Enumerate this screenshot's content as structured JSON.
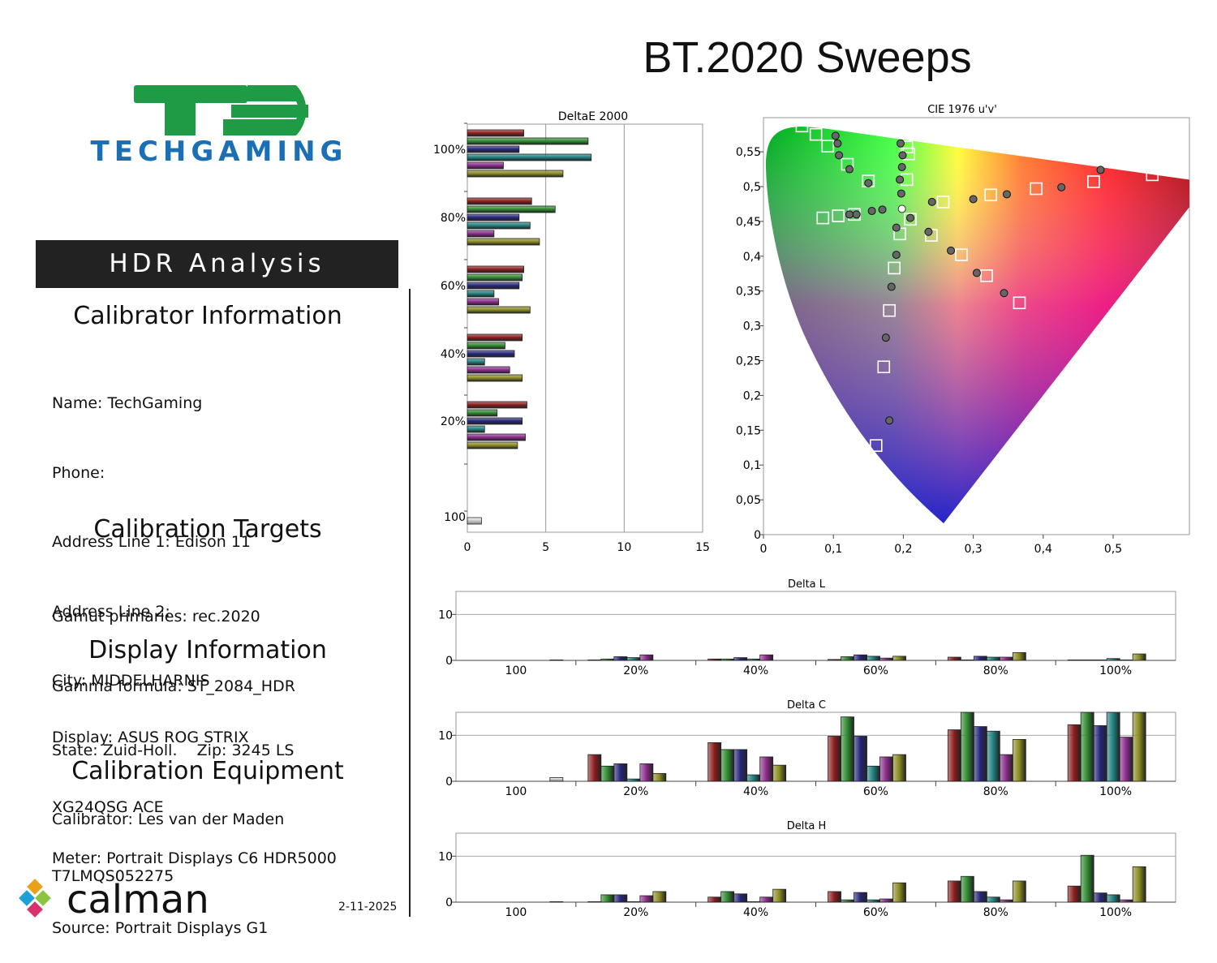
{
  "page_title": "BT.2020 Sweeps",
  "brand": {
    "logo_text": "TECHGAMING",
    "logo_mark": "TG"
  },
  "banner": "HDR Analysis",
  "calibrator": {
    "heading": "Calibrator Information",
    "lines": [
      "Name: TechGaming",
      "Phone:",
      "Address Line 1: Edison 11",
      "Address Line 2:",
      "City: MIDDELHARNIS",
      "State: Zuid-Holl.    Zip: 3245 LS",
      "Calibrator: Les van der Maden"
    ]
  },
  "targets": {
    "heading": "Calibration Targets",
    "lines": [
      "Gamut primaries: rec.2020",
      "Gamma formula: ST_2084_HDR"
    ]
  },
  "display": {
    "heading": "Display Information",
    "lines": [
      "Display: ASUS ROG STRIX",
      "XG24QSG ACE",
      "T7LMQS052275"
    ]
  },
  "equipment": {
    "heading": "Calibration Equipment",
    "lines": [
      "Meter: Portrait Displays C6 HDR5000",
      "Source: Portrait Displays G1"
    ]
  },
  "footer": {
    "software_logo": "calman",
    "date": "2-11-2025"
  },
  "series_colors": [
    "#8a1c1c",
    "#2f8a2f",
    "#25257a",
    "#1f7f7f",
    "#8a2a8a",
    "#8a8a20"
  ],
  "chart_data": [
    {
      "type": "bar",
      "orientation": "horizontal",
      "title": "DeltaE 2000",
      "xlim": [
        0,
        15
      ],
      "xticks": [
        0,
        5,
        10,
        15
      ],
      "groups": [
        {
          "label": "100%",
          "values": [
            3.6,
            7.7,
            3.3,
            7.9,
            2.3,
            6.1
          ]
        },
        {
          "label": "80%",
          "values": [
            4.1,
            5.6,
            3.3,
            4.0,
            1.7,
            4.6
          ]
        },
        {
          "label": "60%",
          "values": [
            3.6,
            3.5,
            3.3,
            1.7,
            2.0,
            4.0
          ]
        },
        {
          "label": "40%",
          "values": [
            3.5,
            2.4,
            3.0,
            1.1,
            2.7,
            3.5
          ]
        },
        {
          "label": "20%",
          "values": [
            3.8,
            1.9,
            3.5,
            1.1,
            3.7,
            3.2
          ]
        },
        {
          "label": "100",
          "values": [
            0.9
          ]
        }
      ]
    },
    {
      "type": "scatter",
      "title": "CIE 1976 u'v'",
      "xlim": [
        0,
        0.6
      ],
      "ylim": [
        0,
        0.6
      ],
      "xticks": [
        "0",
        "0,1",
        "0,2",
        "0,3",
        "0,4",
        "0,5"
      ],
      "yticks": [
        "0",
        "0,05",
        "0,1",
        "0,15",
        "0,2",
        "0,25",
        "0,3",
        "0,35",
        "0,4",
        "0,45",
        "0,5",
        "0,55"
      ],
      "targets": [
        [
          0.055,
          0.587
        ],
        [
          0.075,
          0.575
        ],
        [
          0.092,
          0.558
        ],
        [
          0.12,
          0.532
        ],
        [
          0.15,
          0.508
        ],
        [
          0.205,
          0.557
        ],
        [
          0.208,
          0.547
        ],
        [
          0.205,
          0.51
        ],
        [
          0.556,
          0.517
        ],
        [
          0.472,
          0.507
        ],
        [
          0.39,
          0.497
        ],
        [
          0.325,
          0.488
        ],
        [
          0.257,
          0.478
        ],
        [
          0.085,
          0.455
        ],
        [
          0.107,
          0.458
        ],
        [
          0.13,
          0.46
        ],
        [
          0.21,
          0.453
        ],
        [
          0.24,
          0.43
        ],
        [
          0.195,
          0.432
        ],
        [
          0.187,
          0.383
        ],
        [
          0.18,
          0.322
        ],
        [
          0.172,
          0.241
        ],
        [
          0.161,
          0.128
        ],
        [
          0.283,
          0.402
        ],
        [
          0.319,
          0.372
        ],
        [
          0.366,
          0.333
        ]
      ],
      "measured": [
        [
          0.103,
          0.573
        ],
        [
          0.106,
          0.562
        ],
        [
          0.108,
          0.545
        ],
        [
          0.123,
          0.525
        ],
        [
          0.15,
          0.505
        ],
        [
          0.196,
          0.562
        ],
        [
          0.199,
          0.545
        ],
        [
          0.198,
          0.528
        ],
        [
          0.195,
          0.51
        ],
        [
          0.197,
          0.49
        ],
        [
          0.482,
          0.524
        ],
        [
          0.426,
          0.499
        ],
        [
          0.348,
          0.489
        ],
        [
          0.3,
          0.482
        ],
        [
          0.241,
          0.478
        ],
        [
          0.123,
          0.46
        ],
        [
          0.133,
          0.46
        ],
        [
          0.155,
          0.465
        ],
        [
          0.17,
          0.467
        ],
        [
          0.21,
          0.455
        ],
        [
          0.19,
          0.441
        ],
        [
          0.236,
          0.435
        ],
        [
          0.19,
          0.402
        ],
        [
          0.268,
          0.408
        ],
        [
          0.183,
          0.356
        ],
        [
          0.305,
          0.376
        ],
        [
          0.344,
          0.347
        ],
        [
          0.175,
          0.283
        ],
        [
          0.18,
          0.164
        ]
      ],
      "white_point": [
        0.198,
        0.468
      ]
    },
    {
      "type": "bar",
      "title": "Delta L",
      "ylim": [
        0,
        15
      ],
      "yticks": [
        0,
        10
      ],
      "categories": [
        "100",
        "20%",
        "40%",
        "60%",
        "80%",
        "100%"
      ],
      "groups": [
        [
          0.1
        ],
        [
          0.1,
          0.3,
          0.8,
          0.6,
          1.2
        ],
        [
          0.3,
          0.3,
          0.6,
          0.3,
          1.2
        ],
        [
          0.2,
          0.8,
          1.2,
          0.9,
          0.5,
          0.9
        ],
        [
          0.7,
          0.1,
          0.9,
          0.7,
          0.7,
          1.7
        ],
        [
          0.1,
          0.1,
          0.1,
          0.4,
          0.1,
          1.4
        ]
      ]
    },
    {
      "type": "bar",
      "title": "Delta C",
      "ylim": [
        0,
        15
      ],
      "yticks": [
        0,
        10
      ],
      "categories": [
        "100",
        "20%",
        "40%",
        "60%",
        "80%",
        "100%"
      ],
      "groups": [
        [
          0.8
        ],
        [
          5.8,
          3.3,
          3.8,
          0.5,
          3.8,
          1.7
        ],
        [
          8.4,
          6.9,
          6.9,
          1.4,
          5.3,
          3.5
        ],
        [
          9.8,
          14.0,
          9.8,
          3.3,
          5.3,
          5.8
        ],
        [
          11.2,
          15.0,
          11.9,
          10.9,
          5.8,
          9.1
        ],
        [
          12.3,
          15.0,
          12.1,
          15.0,
          9.6,
          15.0
        ]
      ]
    },
    {
      "type": "bar",
      "title": "Delta H",
      "ylim": [
        0,
        15
      ],
      "yticks": [
        0,
        10
      ],
      "categories": [
        "100",
        "20%",
        "40%",
        "60%",
        "80%",
        "100%"
      ],
      "groups": [
        [
          0.1
        ],
        [
          0.1,
          1.6,
          1.6,
          0.1,
          1.4,
          2.3
        ],
        [
          1.1,
          2.3,
          1.8,
          0.1,
          1.1,
          2.8
        ],
        [
          2.3,
          0.5,
          2.1,
          0.5,
          0.7,
          4.2
        ],
        [
          4.6,
          5.6,
          2.3,
          1.1,
          0.5,
          4.6
        ],
        [
          3.5,
          10.2,
          2.0,
          1.6,
          0.5,
          7.7
        ]
      ]
    }
  ]
}
